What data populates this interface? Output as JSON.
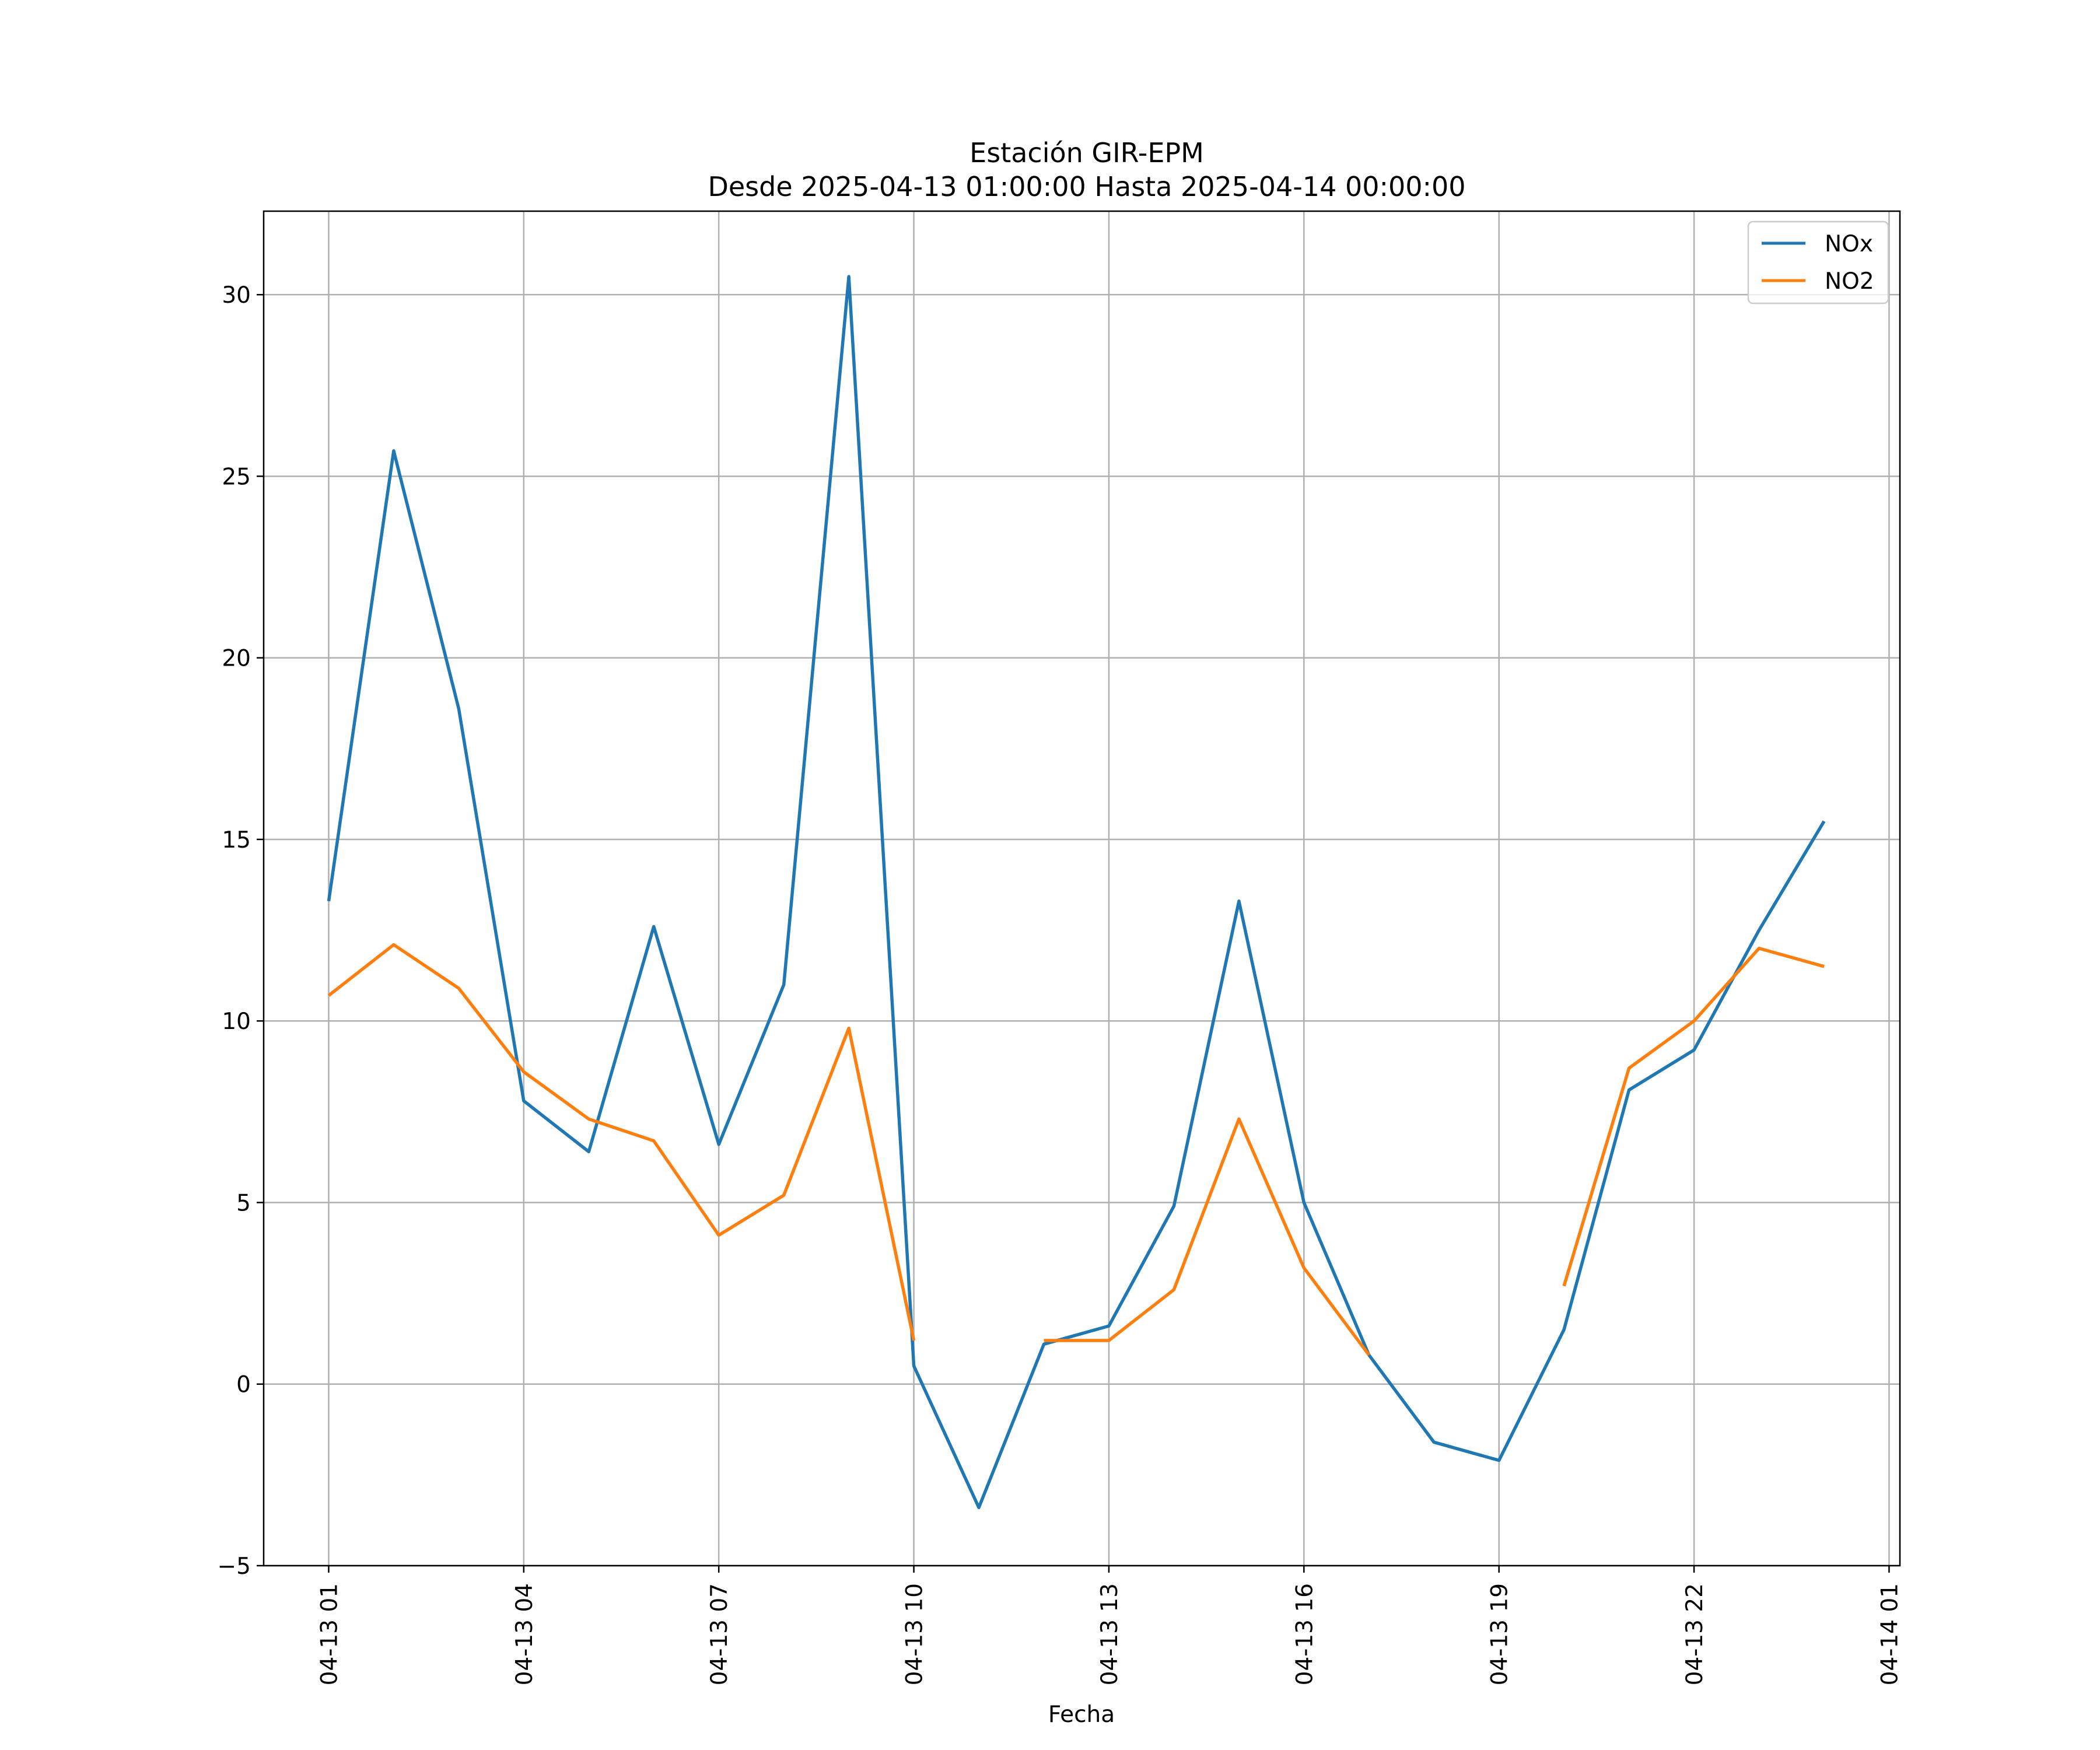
{
  "chart_data": {
    "type": "line",
    "title": "Estación GIR-EPM",
    "subtitle": "Desde 2025-04-13 01:00:00 Hasta 2025-04-14 00:00:00",
    "xlabel": "Fecha",
    "ylabel": "",
    "grid": true,
    "legend_position": "top-right",
    "x_time_range": [
      "2025-04-13 00:00",
      "2025-04-14 01:10"
    ],
    "ylim": [
      -5,
      32.3
    ],
    "yticks": [
      -5,
      0,
      5,
      10,
      15,
      20,
      25,
      30
    ],
    "yticks_labels": [
      "−5",
      "0",
      "5",
      "10",
      "15",
      "20",
      "25",
      "30"
    ],
    "xticks": [
      {
        "time": "2025-04-13 01:00",
        "label": "04-13 01"
      },
      {
        "time": "2025-04-13 04:00",
        "label": "04-13 04"
      },
      {
        "time": "2025-04-13 07:00",
        "label": "04-13 07"
      },
      {
        "time": "2025-04-13 10:00",
        "label": "04-13 10"
      },
      {
        "time": "2025-04-13 13:00",
        "label": "04-13 13"
      },
      {
        "time": "2025-04-13 16:00",
        "label": "04-13 16"
      },
      {
        "time": "2025-04-13 19:00",
        "label": "04-13 19"
      },
      {
        "time": "2025-04-13 22:00",
        "label": "04-13 22"
      },
      {
        "time": "2025-04-14 01:00",
        "label": "04-14 01"
      }
    ],
    "x": [
      "2025-04-13 01:00",
      "2025-04-13 02:00",
      "2025-04-13 03:00",
      "2025-04-13 04:00",
      "2025-04-13 05:00",
      "2025-04-13 06:00",
      "2025-04-13 07:00",
      "2025-04-13 08:00",
      "2025-04-13 09:00",
      "2025-04-13 10:00",
      "2025-04-13 11:00",
      "2025-04-13 12:00",
      "2025-04-13 13:00",
      "2025-04-13 14:00",
      "2025-04-13 15:00",
      "2025-04-13 16:00",
      "2025-04-13 17:00",
      "2025-04-13 18:00",
      "2025-04-13 19:00",
      "2025-04-13 20:00",
      "2025-04-13 21:00",
      "2025-04-13 22:00",
      "2025-04-13 23:00",
      "2025-04-14 00:00"
    ],
    "series": [
      {
        "name": "NOx",
        "color": "#1f77b4",
        "values": [
          13.3,
          25.7,
          18.6,
          7.8,
          6.4,
          12.6,
          6.6,
          11.0,
          30.5,
          0.5,
          -3.4,
          1.1,
          1.6,
          4.9,
          13.3,
          5.0,
          0.8,
          -1.6,
          -2.1,
          1.5,
          8.1,
          9.2,
          12.5,
          15.5
        ]
      },
      {
        "name": "NO2",
        "color": "#ff7f0e",
        "values": [
          10.7,
          12.1,
          10.9,
          8.6,
          7.3,
          6.7,
          4.1,
          5.2,
          9.8,
          1.2,
          null,
          1.2,
          1.2,
          2.6,
          7.3,
          3.2,
          0.8,
          null,
          null,
          2.7,
          8.7,
          10.0,
          12.0,
          11.5
        ]
      }
    ]
  }
}
